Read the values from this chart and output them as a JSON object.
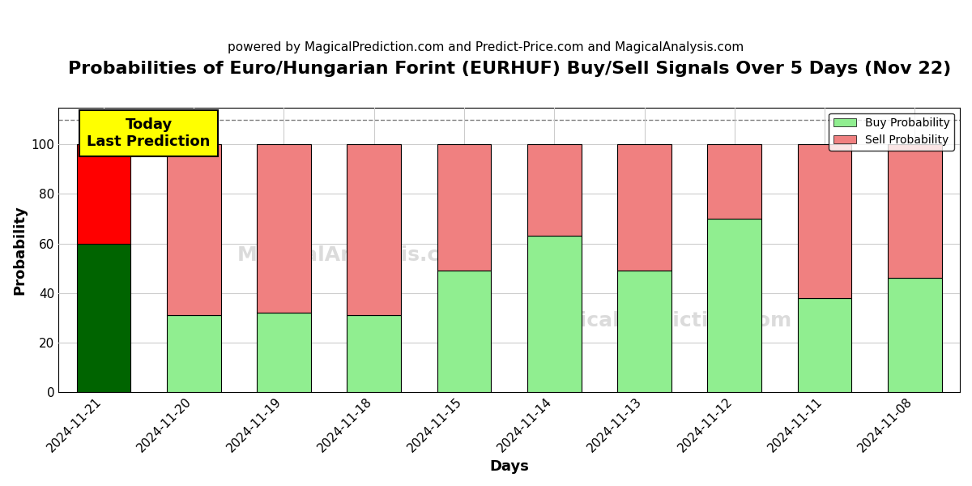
{
  "title": "Probabilities of Euro/Hungarian Forint (EURHUF) Buy/Sell Signals Over 5 Days (Nov 22)",
  "subtitle": "powered by MagicalPrediction.com and Predict-Price.com and MagicalAnalysis.com",
  "xlabel": "Days",
  "ylabel": "Probability",
  "dates": [
    "2024-11-21",
    "2024-11-20",
    "2024-11-19",
    "2024-11-18",
    "2024-11-15",
    "2024-11-14",
    "2024-11-13",
    "2024-11-12",
    "2024-11-11",
    "2024-11-08"
  ],
  "buy_values": [
    60,
    31,
    32,
    31,
    49,
    63,
    49,
    70,
    38,
    46
  ],
  "sell_values": [
    40,
    69,
    68,
    69,
    51,
    37,
    51,
    30,
    62,
    54
  ],
  "today_buy_color": "#006400",
  "today_sell_color": "#ff0000",
  "buy_color": "#90ee90",
  "sell_color": "#f08080",
  "today_annotation": "Today\nLast Prediction",
  "annotation_bg_color": "#ffff00",
  "dashed_line_y": 110,
  "ylim": [
    0,
    115
  ],
  "yticks": [
    0,
    20,
    40,
    60,
    80,
    100
  ],
  "background_color": "#ffffff",
  "grid_color": "#cccccc",
  "title_fontsize": 16,
  "subtitle_fontsize": 11,
  "label_fontsize": 13,
  "tick_fontsize": 11,
  "bar_width": 0.6,
  "legend_label_buy": "Buy Probability",
  "legend_label_sell": "Sell Probability"
}
